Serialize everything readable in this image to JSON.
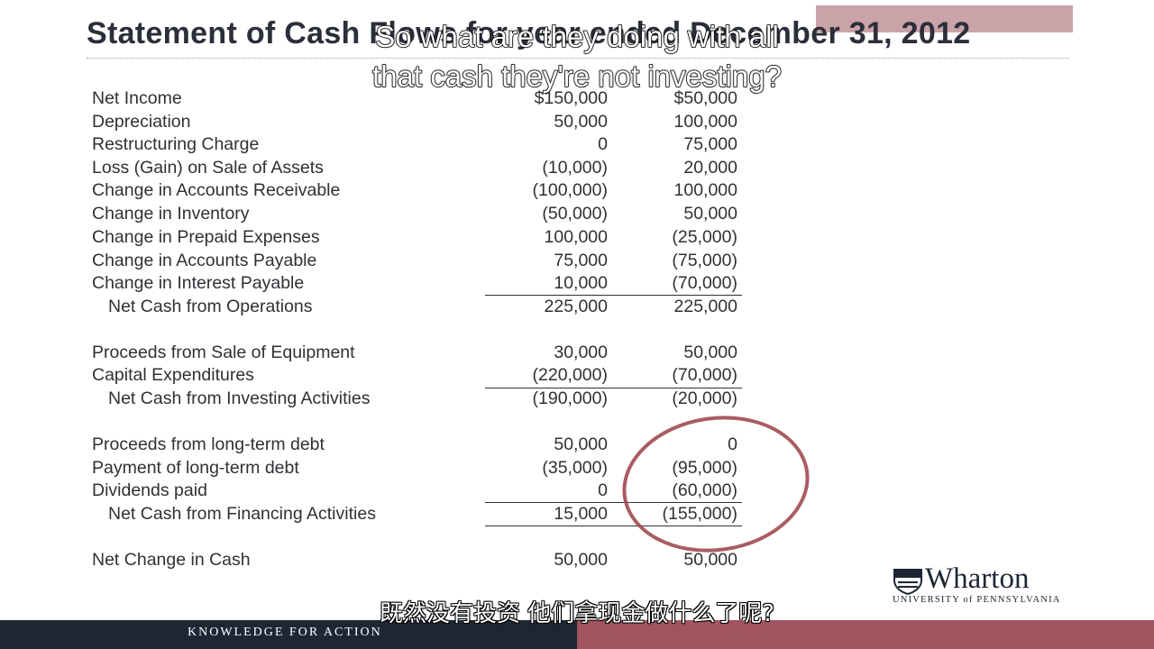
{
  "title": "Statement of Cash Flows for year ended December 31, 2012",
  "subtitle_en": [
    "So what are they doing with all",
    "that cash they're not investing?"
  ],
  "subtitle_zh": "既然没有投资 他们拿现金做什么了呢?",
  "footer": {
    "tagline": "KNOWLEDGE FOR ACTION"
  },
  "logo": {
    "name": "Wharton",
    "subline": "UNIVERSITY of PENNSYLVANIA"
  },
  "rows": [
    {
      "label": "Net Income",
      "v1": "$150,000",
      "v2": "$50,000"
    },
    {
      "label": "Depreciation",
      "v1": "50,000",
      "v2": "100,000"
    },
    {
      "label": "Restructuring Charge",
      "v1": "0",
      "v2": "75,000"
    },
    {
      "label": "Loss (Gain) on Sale of Assets",
      "v1": "(10,000)",
      "v2": "20,000"
    },
    {
      "label": "Change in Accounts Receivable",
      "v1": "(100,000)",
      "v2": "100,000"
    },
    {
      "label": "Change in Inventory",
      "v1": "(50,000)",
      "v2": "50,000"
    },
    {
      "label": "Change in Prepaid Expenses",
      "v1": "100,000",
      "v2": "(25,000)"
    },
    {
      "label": "Change in Accounts Payable",
      "v1": "75,000",
      "v2": "(75,000)"
    },
    {
      "label": "Change in Interest Payable",
      "v1": "10,000",
      "v2": "(70,000)"
    },
    {
      "label": "Net Cash from Operations",
      "v1": "225,000",
      "v2": "225,000"
    },
    {
      "label": "Proceeds from Sale of Equipment",
      "v1": "30,000",
      "v2": "50,000"
    },
    {
      "label": "Capital Expenditures",
      "v1": "(220,000)",
      "v2": "(70,000)"
    },
    {
      "label": "Net Cash from Investing Activities",
      "v1": "(190,000)",
      "v2": "(20,000)"
    },
    {
      "label": "Proceeds from long-term debt",
      "v1": "50,000",
      "v2": "0"
    },
    {
      "label": "Payment of long-term debt",
      "v1": "(35,000)",
      "v2": "(95,000)"
    },
    {
      "label": "Dividends paid",
      "v1": "0",
      "v2": "(60,000)"
    },
    {
      "label": "Net Cash from Financing Activities",
      "v1": "15,000",
      "v2": "(155,000)"
    },
    {
      "label": "Net Change in Cash",
      "v1": "50,000",
      "v2": "50,000"
    }
  ]
}
